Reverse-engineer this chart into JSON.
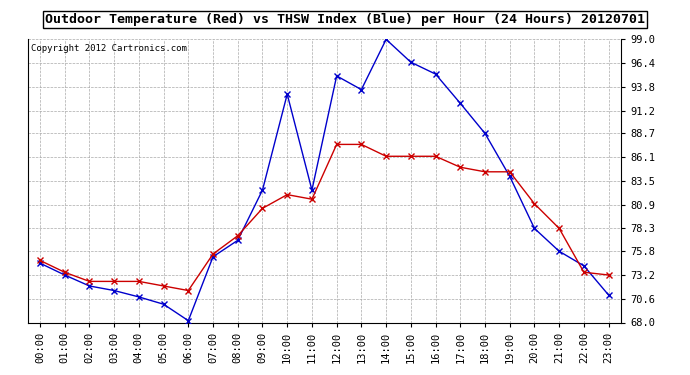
{
  "title": "Outdoor Temperature (Red) vs THSW Index (Blue) per Hour (24 Hours) 20120701",
  "copyright": "Copyright 2012 Cartronics.com",
  "hours": [
    "00:00",
    "01:00",
    "02:00",
    "03:00",
    "04:00",
    "05:00",
    "06:00",
    "07:00",
    "08:00",
    "09:00",
    "10:00",
    "11:00",
    "12:00",
    "13:00",
    "14:00",
    "15:00",
    "16:00",
    "17:00",
    "18:00",
    "19:00",
    "20:00",
    "21:00",
    "22:00",
    "23:00"
  ],
  "red_temp": [
    74.8,
    73.5,
    72.5,
    72.5,
    72.5,
    72.0,
    71.5,
    75.5,
    77.5,
    80.5,
    82.0,
    81.5,
    87.5,
    87.5,
    86.2,
    86.2,
    86.2,
    85.0,
    84.5,
    84.5,
    81.0,
    78.3,
    73.5,
    73.2
  ],
  "blue_thsw": [
    74.5,
    73.2,
    72.0,
    71.5,
    70.8,
    70.0,
    68.2,
    75.2,
    77.0,
    82.5,
    93.0,
    82.5,
    95.0,
    93.5,
    99.0,
    96.5,
    95.2,
    92.0,
    88.7,
    84.0,
    78.3,
    75.8,
    74.2,
    71.0
  ],
  "ylim": [
    68.0,
    99.0
  ],
  "yticks": [
    68.0,
    70.6,
    73.2,
    75.8,
    78.3,
    80.9,
    83.5,
    86.1,
    88.7,
    91.2,
    93.8,
    96.4,
    99.0
  ],
  "bg_color": "#ffffff",
  "plot_bg_color": "#ffffff",
  "grid_color": "#aaaaaa",
  "red_color": "#cc0000",
  "blue_color": "#0000cc",
  "title_bg_color": "#ffffff",
  "title_text_color": "#000000",
  "copyright_color": "#000000",
  "title_fontsize": 9.5,
  "tick_fontsize": 7.5,
  "copyright_fontsize": 6.5
}
